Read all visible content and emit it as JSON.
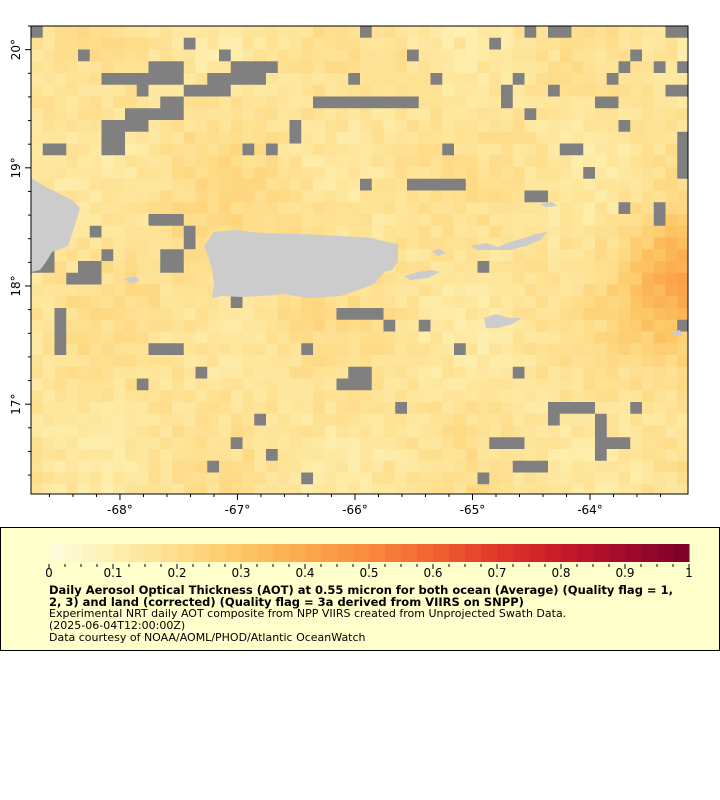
{
  "map": {
    "lon_range": [
      -68.757,
      -63.166
    ],
    "lat_range": [
      16.24,
      20.2
    ],
    "x_ticks": [
      {
        "v": -68,
        "label": "-68°"
      },
      {
        "v": -67,
        "label": "-67°"
      },
      {
        "v": -66,
        "label": "-66°"
      },
      {
        "v": -65,
        "label": "-65°"
      },
      {
        "v": -64,
        "label": "-64°"
      }
    ],
    "y_ticks": [
      {
        "v": 20,
        "label": "20°"
      },
      {
        "v": 19,
        "label": "19°"
      },
      {
        "v": 18,
        "label": "18°"
      },
      {
        "v": 17,
        "label": "17°"
      }
    ],
    "colors": {
      "land": "#cccccc",
      "missing": "#808080",
      "frame": "#000000"
    }
  },
  "legend": {
    "colorbar": {
      "min": 0,
      "max": 1,
      "steps": 40,
      "tick_labels": [
        "0",
        "0.1",
        "0.2",
        "0.3",
        "0.4",
        "0.5",
        "0.6",
        "0.7",
        "0.8",
        "0.9",
        "1"
      ],
      "stops": [
        "#fffde0",
        "#feefae",
        "#fedd8a",
        "#fdc664",
        "#fca84e",
        "#f9893e",
        "#f26232",
        "#e0362a",
        "#c71a29",
        "#a10a2e",
        "#7a0128"
      ]
    },
    "title": "Daily Aerosol Optical Thickness (AOT) at 0.55 micron for both ocean (Average) (Quality flag = 1, 2, 3) and land (corrected) (Quality flag = 3a derived from VIIRS on SNPP)",
    "description": "Experimental NRT daily AOT composite from NPP VIIRS created from Unprojected Swath Data.",
    "time": "(2025-06-04T12:00:00Z)",
    "credit": "Data courtesy of NOAA/AOML/PHOD/Atlantic OceanWatch"
  }
}
